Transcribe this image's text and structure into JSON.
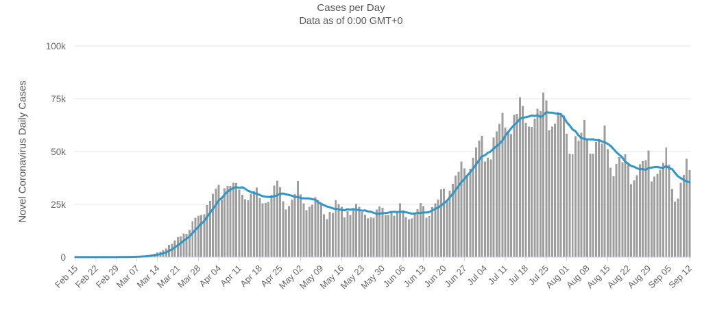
{
  "header": {
    "title": "Cases per Day",
    "subtitle": "Data as of 0:00 GMT+0"
  },
  "chart_data": {
    "type": "bar",
    "title": "Cases per Day",
    "subtitle": "Data as of 0:00 GMT+0",
    "xlabel": "",
    "ylabel": "Novel Coronavirus Daily Cases",
    "units": "daily cases, values in thousands",
    "ylim": [
      0,
      100
    ],
    "grid": true,
    "legend": "none",
    "yticks": [
      {
        "value": 0,
        "label": "0"
      },
      {
        "value": 25,
        "label": "25k"
      },
      {
        "value": 50,
        "label": "50k"
      },
      {
        "value": 75,
        "label": "75k"
      },
      {
        "value": 100,
        "label": "100k"
      }
    ],
    "x_start": "Feb 15",
    "x_end": "Sep 12",
    "x_step_days": 1,
    "xtick_interval_days": 7,
    "xtick_labels": [
      "Feb 15",
      "Feb 22",
      "Feb 29",
      "Mar 07",
      "Mar 14",
      "Mar 21",
      "Mar 28",
      "Apr 04",
      "Apr 11",
      "Apr 18",
      "Apr 25",
      "May 02",
      "May 09",
      "May 16",
      "May 23",
      "May 30",
      "Jun 06",
      "Jun 13",
      "Jun 20",
      "Jun 27",
      "Jul 04",
      "Jul 11",
      "Jul 18",
      "Jul 25",
      "Aug 01",
      "Aug 08",
      "Aug 15",
      "Aug 22",
      "Aug 29",
      "Sep 05",
      "Sep 12"
    ],
    "series": [
      {
        "name": "Daily Cases",
        "type": "bar",
        "color": "#9e9e9e",
        "values": [
          0.05,
          0.02,
          0.03,
          0.02,
          0.02,
          0.03,
          0.05,
          0.02,
          0.03,
          0.02,
          0.05,
          0.03,
          0.06,
          0.08,
          0.07,
          0.1,
          0.1,
          0.15,
          0.2,
          0.25,
          0.3,
          0.4,
          0.5,
          0.6,
          0.8,
          1.0,
          1.3,
          1.7,
          2.2,
          2.6,
          3.4,
          4.0,
          5.9,
          6.4,
          7.9,
          9.4,
          9.9,
          11.2,
          11.1,
          13.0,
          17.0,
          18.7,
          19.6,
          19.9,
          20.3,
          24.7,
          26.7,
          30.0,
          32.5,
          34.2,
          27.3,
          32.6,
          33.8,
          33.7,
          35.3,
          35.1,
          31.9,
          29.6,
          27.5,
          26.9,
          30.0,
          31.4,
          32.9,
          28.1,
          25.5,
          25.6,
          26.2,
          29.6,
          34.0,
          36.2,
          33.1,
          26.5,
          22.5,
          24.2,
          27.3,
          29.8,
          36.1,
          29.7,
          25.5,
          22.3,
          23.9,
          24.8,
          28.4,
          26.9,
          25.5,
          20.3,
          18.1,
          21.5,
          20.9,
          27.1,
          25.2,
          23.8,
          18.9,
          21.8,
          19.9,
          22.6,
          25.4,
          23.9,
          21.5,
          20.1,
          18.3,
          18.9,
          18.7,
          22.6,
          24.1,
          23.3,
          20.0,
          20.0,
          21.0,
          19.7,
          21.5,
          25.5,
          22.3,
          19.0,
          17.9,
          18.3,
          20.5,
          22.8,
          25.6,
          24.2,
          18.6,
          19.5,
          23.7,
          25.5,
          27.2,
          32.2,
          32.4,
          26.2,
          31.5,
          34.7,
          38.6,
          40.5,
          45.3,
          42.0,
          38.7,
          41.9,
          47.0,
          52.0,
          55.2,
          57.5,
          45.3,
          47.1,
          46.3,
          56.7,
          59.6,
          63.2,
          68.4,
          61.4,
          59.7,
          58.3,
          67.3,
          67.8,
          75.7,
          71.6,
          63.7,
          61.8,
          61.7,
          65.6,
          70.3,
          69.1,
          78.0,
          74.2,
          60.0,
          61.8,
          63.2,
          68.7,
          68.0,
          67.0,
          58.5,
          49.0,
          48.7,
          57.3,
          55.2,
          59.0,
          64.9,
          56.1,
          49.1,
          49.0,
          54.5,
          55.9,
          53.8,
          62.3,
          51.1,
          42.3,
          38.3,
          44.1,
          47.4,
          44.9,
          48.7,
          44.1,
          34.6,
          36.3,
          38.8,
          44.0,
          45.5,
          46.0,
          50.5,
          35.8,
          38.1,
          39.5,
          41.4,
          44.7,
          52.0,
          43.8,
          32.3,
          26.3,
          27.7,
          35.3,
          38.9,
          46.6,
          41.3
        ]
      },
      {
        "name": "7-day moving average",
        "type": "line",
        "color": "#2f96ca",
        "derived_from": "Daily Cases",
        "window": 7
      }
    ],
    "colors": {
      "bar": "#9e9e9e",
      "line": "#2f96ca",
      "gridline": "#e6e6e6",
      "axis_line": "#ccd6eb",
      "tick_label": "#666666",
      "title_text": "#555555"
    }
  }
}
